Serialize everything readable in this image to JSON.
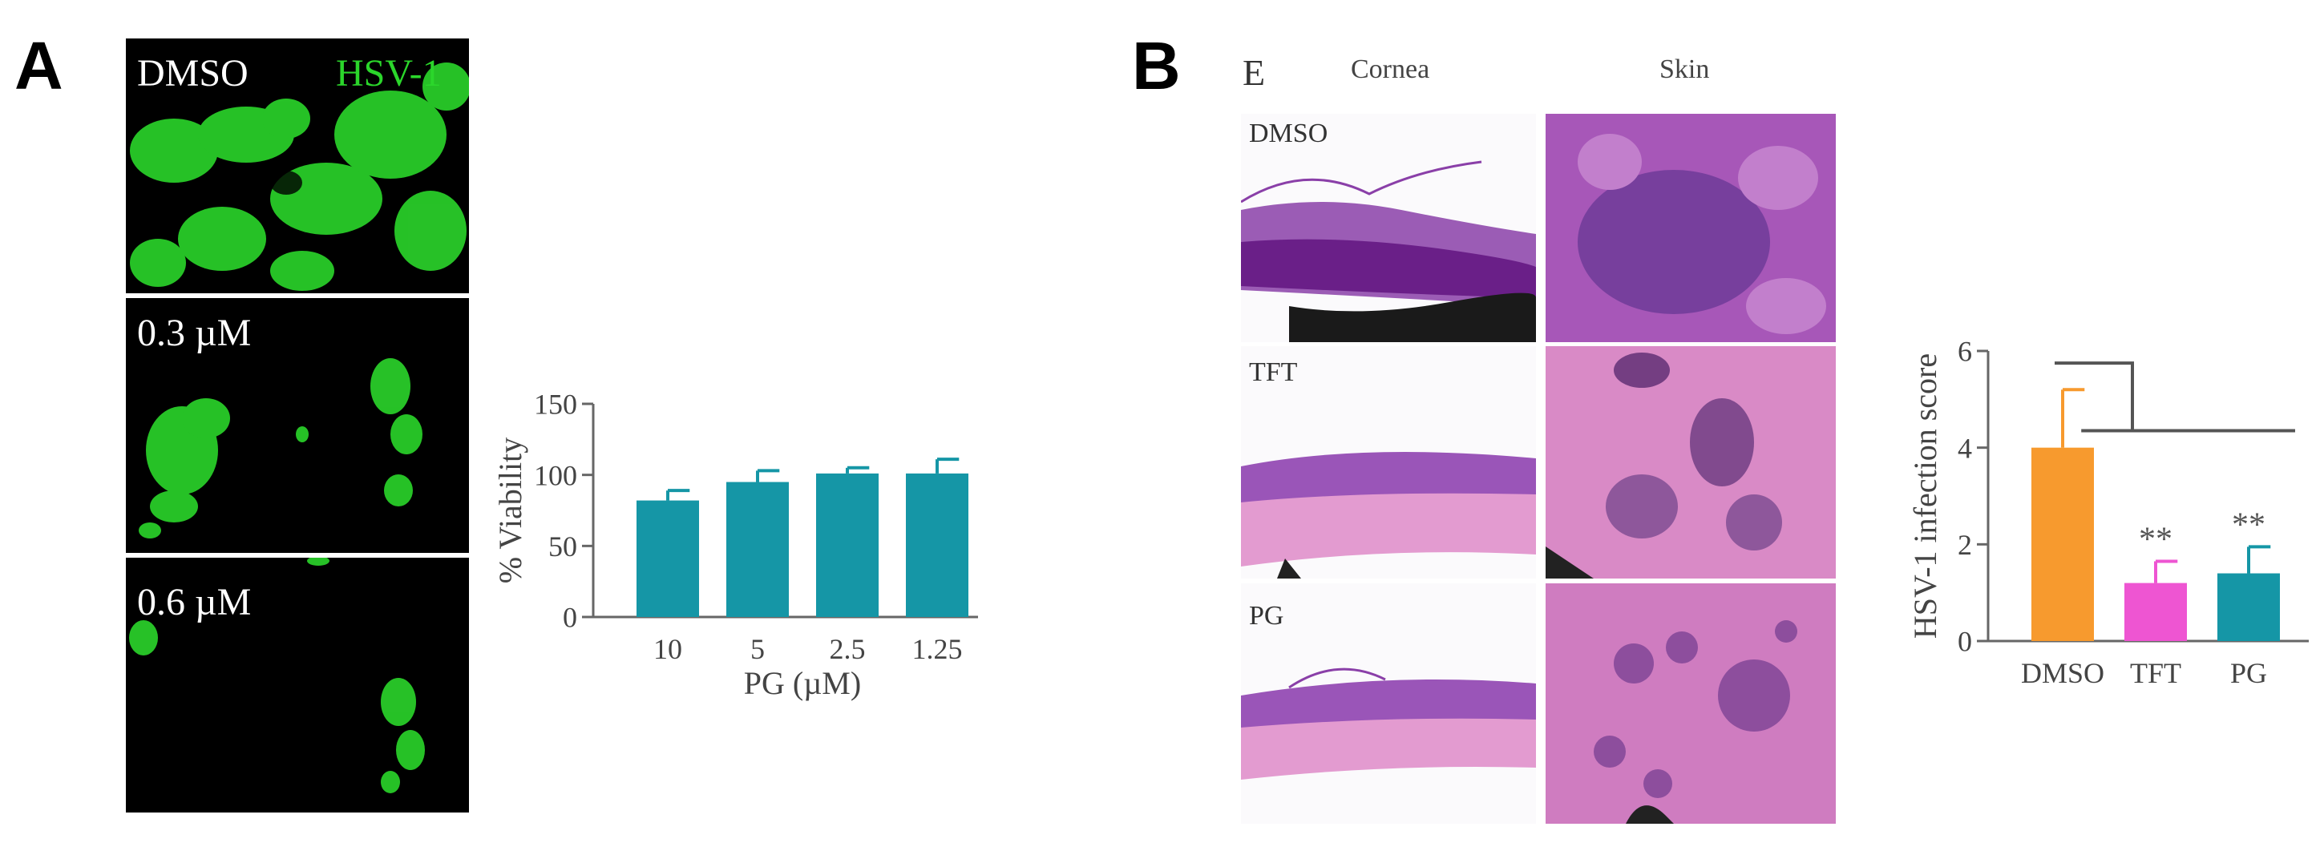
{
  "panel_a": {
    "letter": "A",
    "images": [
      {
        "label": "DMSO",
        "label2": "HSV-1"
      },
      {
        "label": "0.3 µM"
      },
      {
        "label": "0.6 µM"
      }
    ]
  },
  "panel_b": {
    "letter": "B",
    "sub_letter": "E",
    "col_headers": [
      "Cornea",
      "Skin"
    ],
    "row_labels": [
      "DMSO",
      "TFT",
      "PG"
    ]
  },
  "colors": {
    "teal": "#1596a6",
    "orange": "#f79a2e",
    "magenta": "#ee55d2",
    "fluor_green": "#2bd62b",
    "he_pink": "#d889c4",
    "he_purple": "#8a3fa8"
  },
  "chart_data": [
    {
      "type": "bar",
      "categories": [
        "10",
        "5",
        "2.5",
        "1.25"
      ],
      "values": [
        82,
        95,
        101,
        101
      ],
      "errors": [
        7,
        8,
        4,
        10
      ],
      "colors": [
        "#1596a6",
        "#1596a6",
        "#1596a6",
        "#1596a6"
      ],
      "xlabel": "PG (µM)",
      "ylabel": "% Viability",
      "ylim": [
        0,
        150
      ],
      "yticks": [
        0,
        50,
        100,
        150
      ],
      "grid": false
    },
    {
      "type": "bar",
      "categories": [
        "DMSO",
        "TFT",
        "PG"
      ],
      "values": [
        4.0,
        1.2,
        1.4
      ],
      "errors": [
        1.2,
        0.45,
        0.55
      ],
      "colors": [
        "#f79a2e",
        "#ee55d2",
        "#1596a6"
      ],
      "annotations": [
        "",
        "**",
        "**"
      ],
      "ylabel": "HSV-1 infection score",
      "ylim": [
        0,
        6
      ],
      "yticks": [
        0,
        2,
        4,
        6
      ],
      "grid": false,
      "significance_bracket": true
    }
  ]
}
